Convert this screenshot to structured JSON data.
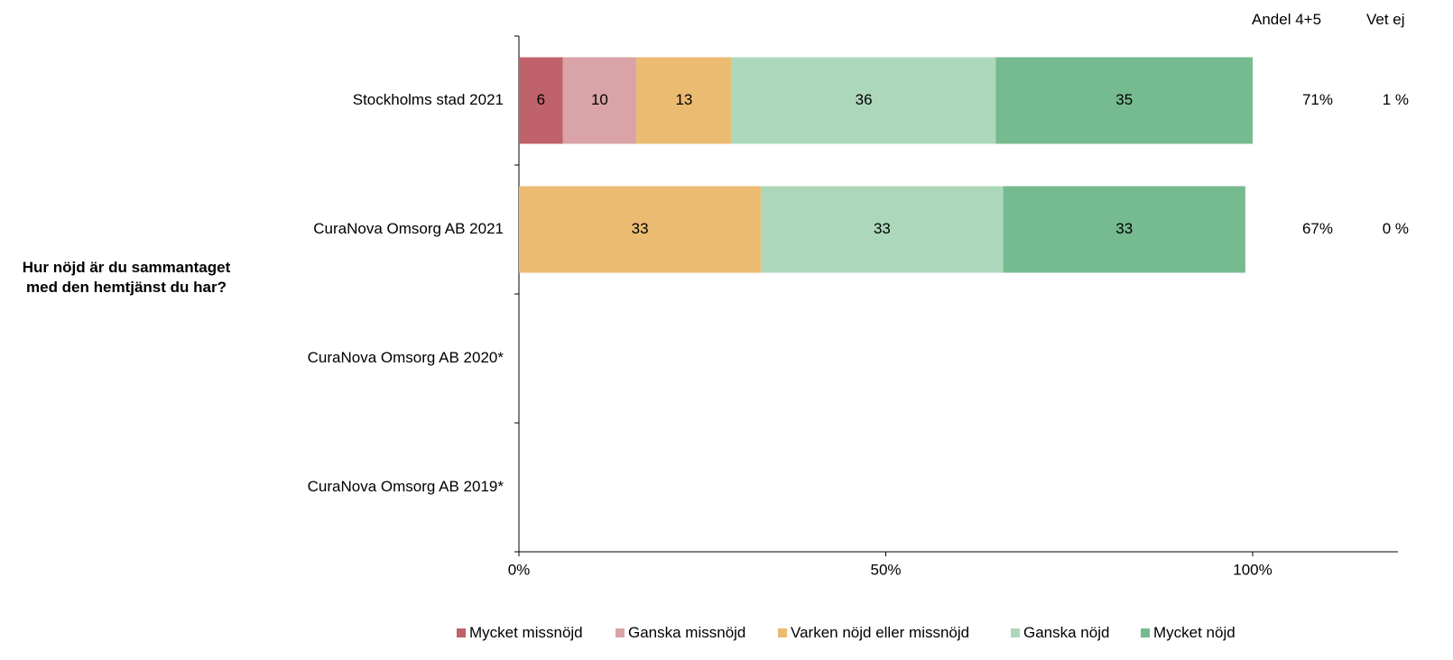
{
  "question": "Hur nöjd är du sammantaget med den hemtjänst du har?",
  "headers": {
    "share": "Andel 4+5",
    "dontknow": "Vet ej"
  },
  "chart_data": {
    "type": "bar",
    "orientation": "horizontal",
    "stacked": true,
    "categories": [
      "Stockholms stad 2021",
      "CuraNova Omsorg AB 2021",
      "CuraNova Omsorg AB 2020*",
      "CuraNova Omsorg AB 2019*"
    ],
    "series": [
      {
        "name": "Mycket missnöjd",
        "color": "#c0626a",
        "values": [
          6,
          0,
          null,
          null
        ]
      },
      {
        "name": "Ganska missnöjd",
        "color": "#daa3a7",
        "values": [
          10,
          0,
          null,
          null
        ]
      },
      {
        "name": "Varken nöjd eller missnöjd",
        "color": "#ebbb72",
        "values": [
          13,
          33,
          null,
          null
        ]
      },
      {
        "name": "Ganska nöjd",
        "color": "#add7bb",
        "values": [
          36,
          33,
          null,
          null
        ]
      },
      {
        "name": "Mycket nöjd",
        "color": "#76ba8f",
        "values": [
          35,
          33,
          null,
          null
        ]
      }
    ],
    "share_4_5": [
      "71%",
      "67%",
      "",
      ""
    ],
    "dont_know": [
      "1 %",
      "0 %",
      "",
      ""
    ],
    "xticks": [
      "0%",
      "50%",
      "100%"
    ],
    "xlim": [
      0,
      100
    ],
    "legend": "bottom"
  }
}
